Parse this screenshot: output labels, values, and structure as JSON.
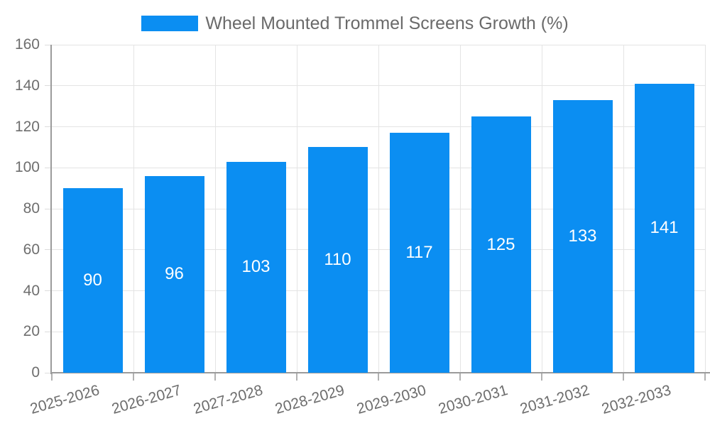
{
  "legend": {
    "label": "Wheel Mounted Trommel Screens Growth (%)"
  },
  "chart_data": {
    "type": "bar",
    "title": "Wheel Mounted Trommel Screens Growth (%)",
    "categories": [
      "2025-2026",
      "2026-2027",
      "2027-2028",
      "2028-2029",
      "2029-2030",
      "2030-2031",
      "2031-2032",
      "2032-2033"
    ],
    "values": [
      90,
      96,
      103,
      110,
      117,
      125,
      133,
      141
    ],
    "xlabel": "",
    "ylabel": "",
    "ylim": [
      0,
      160
    ],
    "ytick_step": 20,
    "yticks": [
      0,
      20,
      40,
      60,
      80,
      100,
      120,
      140,
      160
    ],
    "grid": true,
    "legend_position": "top-center",
    "value_labels": "centered-inside-bars",
    "colors": {
      "bar": "#0b8ef2",
      "bar_value_text": "#ffffff",
      "grid_line": "#e4e4e4",
      "axis_line": "#9b9b9b",
      "y_tick_mark": "#dcdcdc",
      "x_tick_mark": "#b2b2b2",
      "axis_text": "#6e6e6e",
      "legend_text": "#6a6a6a",
      "background": "#ffffff"
    }
  }
}
